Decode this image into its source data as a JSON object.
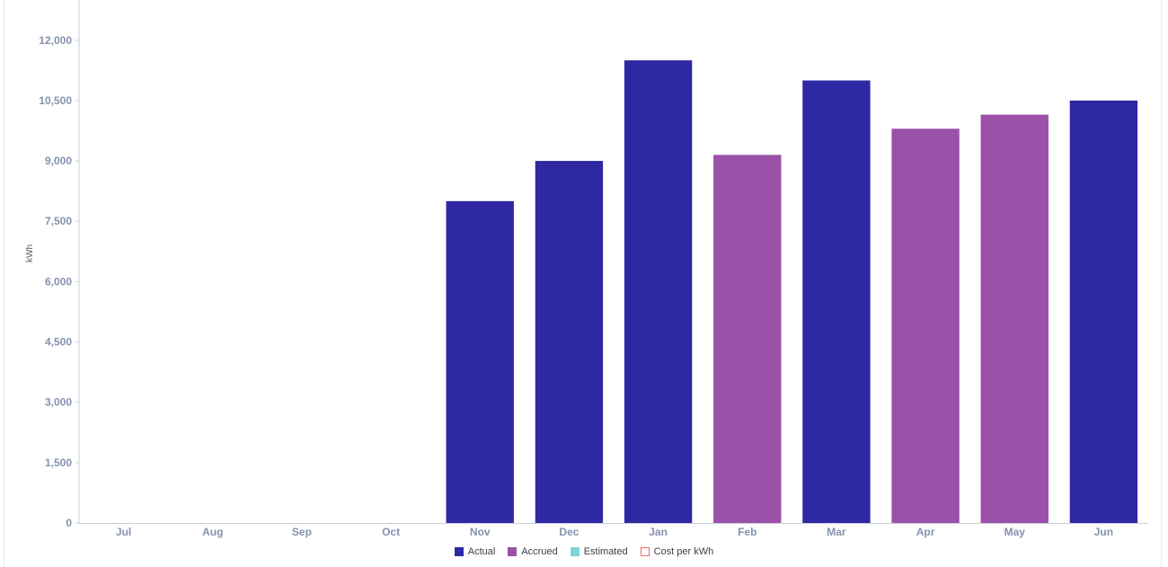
{
  "chart_data": {
    "type": "bar",
    "ylabel": "kWh",
    "ylim": [
      0,
      13000
    ],
    "yticks": [
      0,
      1500,
      3000,
      4500,
      6000,
      7500,
      9000,
      10500,
      12000
    ],
    "ytick_labels": [
      "0",
      "1,500",
      "3,000",
      "4,500",
      "6,000",
      "7,500",
      "9,000",
      "10,500",
      "12,000"
    ],
    "categories": [
      "Jul",
      "Aug",
      "Sep",
      "Oct",
      "Nov",
      "Dec",
      "Jan",
      "Feb",
      "Mar",
      "Apr",
      "May",
      "Jun"
    ],
    "values": [
      0,
      0,
      0,
      0,
      8000,
      9000,
      11500,
      9150,
      11000,
      9800,
      10150,
      10500
    ],
    "bar_status": [
      "none",
      "none",
      "none",
      "none",
      "Actual",
      "Actual",
      "Actual",
      "Accrued",
      "Actual",
      "Accrued",
      "Accrued",
      "Actual"
    ],
    "legend_placement": "bottom-center",
    "grid": false
  },
  "legend": [
    {
      "label": "Actual",
      "color": "#2e28a3",
      "style": "fill"
    },
    {
      "label": "Accrued",
      "color": "#9b51a7",
      "style": "fill"
    },
    {
      "label": "Estimated",
      "color": "#7fd6d6",
      "style": "fill"
    },
    {
      "label": "Cost per kWh",
      "color": "#f06a6a",
      "style": "outline"
    }
  ],
  "colors": {
    "Actual": "#2e28a3",
    "Accrued": "#9b51a7",
    "axis": "#c9ced8",
    "tick_text": "#8592ae"
  }
}
